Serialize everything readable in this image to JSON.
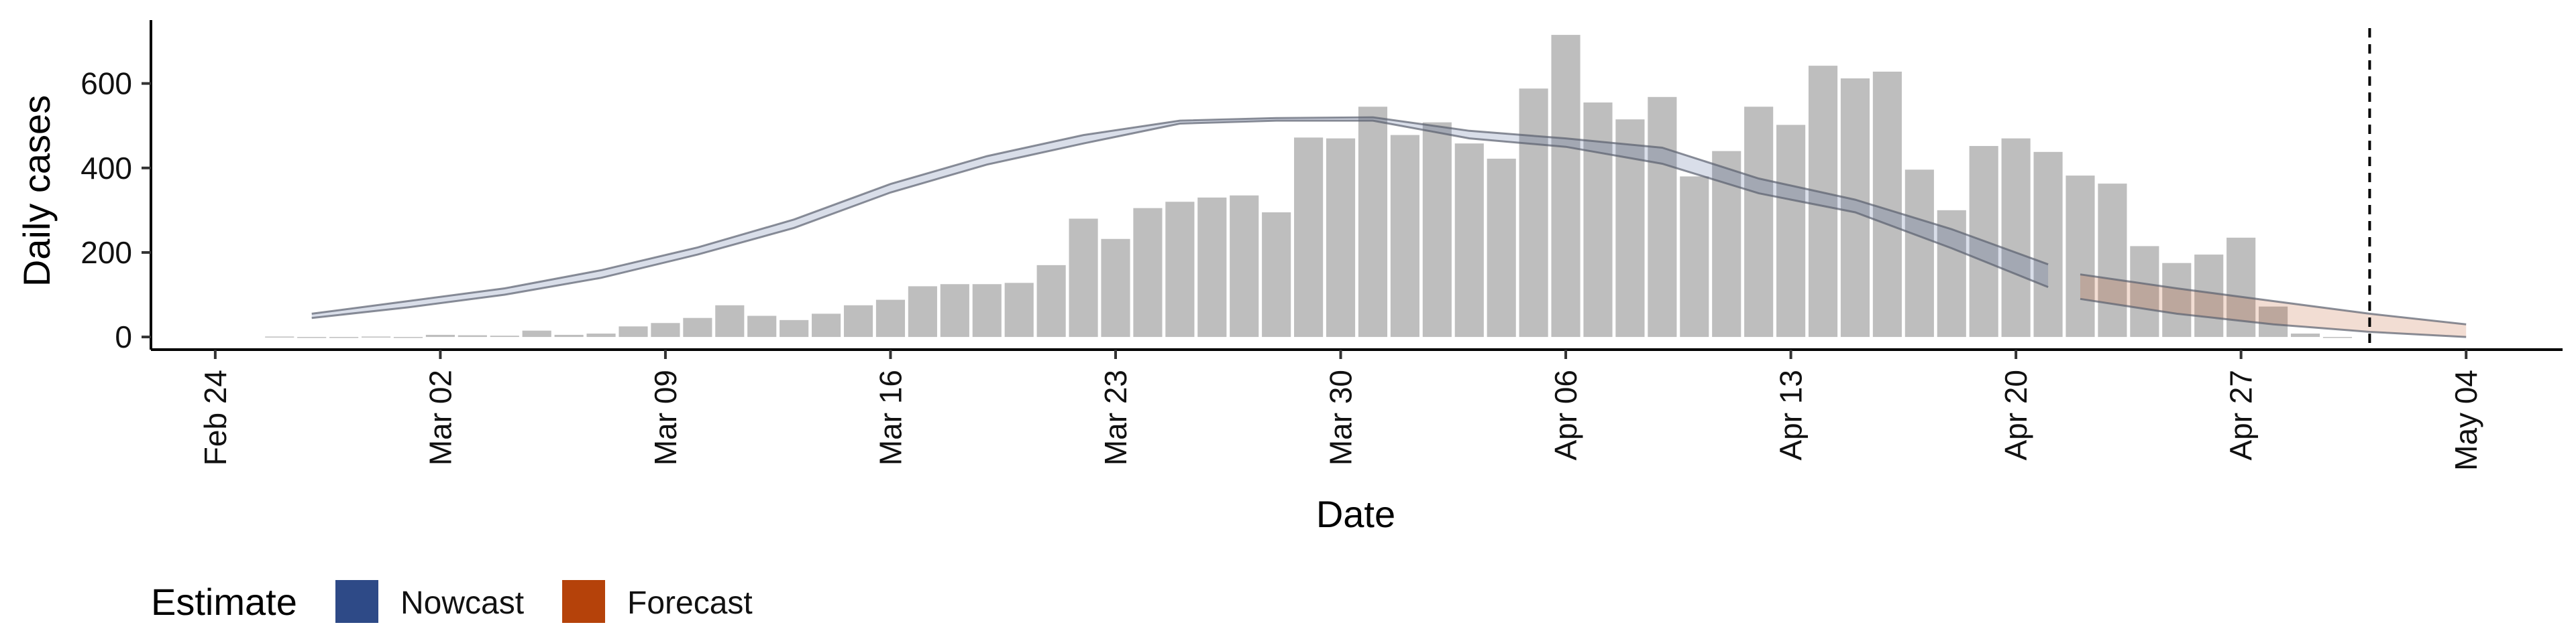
{
  "chart_data": {
    "type": "bar",
    "xlabel": "Date",
    "ylabel": "Daily cases",
    "ylim": [
      -30,
      750
    ],
    "yticks": [
      0,
      200,
      400,
      600
    ],
    "xlim": [
      "2020-02-22",
      "2020-05-07"
    ],
    "xtick_labels": [
      {
        "date": "2020-02-24",
        "label": "Feb 24"
      },
      {
        "date": "2020-03-02",
        "label": "Mar 02"
      },
      {
        "date": "2020-03-09",
        "label": "Mar 09"
      },
      {
        "date": "2020-03-16",
        "label": "Mar 16"
      },
      {
        "date": "2020-03-23",
        "label": "Mar 23"
      },
      {
        "date": "2020-03-30",
        "label": "Mar 30"
      },
      {
        "date": "2020-04-06",
        "label": "Apr 06"
      },
      {
        "date": "2020-04-13",
        "label": "Apr 13"
      },
      {
        "date": "2020-04-20",
        "label": "Apr 20"
      },
      {
        "date": "2020-04-27",
        "label": "Apr 27"
      },
      {
        "date": "2020-05-04",
        "label": "May 04"
      }
    ],
    "reference_line": {
      "date": "2020-05-01",
      "style": "dashed"
    },
    "bars": {
      "color": "#bebebe",
      "dates": [
        "2020-02-26",
        "2020-02-27",
        "2020-02-28",
        "2020-02-29",
        "2020-03-01",
        "2020-03-02",
        "2020-03-03",
        "2020-03-04",
        "2020-03-05",
        "2020-03-06",
        "2020-03-07",
        "2020-03-08",
        "2020-03-09",
        "2020-03-10",
        "2020-03-11",
        "2020-03-12",
        "2020-03-13",
        "2020-03-14",
        "2020-03-15",
        "2020-03-16",
        "2020-03-17",
        "2020-03-18",
        "2020-03-19",
        "2020-03-20",
        "2020-03-21",
        "2020-03-22",
        "2020-03-23",
        "2020-03-24",
        "2020-03-25",
        "2020-03-26",
        "2020-03-27",
        "2020-03-28",
        "2020-03-29",
        "2020-03-30",
        "2020-03-31",
        "2020-04-01",
        "2020-04-02",
        "2020-04-03",
        "2020-04-04",
        "2020-04-05",
        "2020-04-06",
        "2020-04-07",
        "2020-04-08",
        "2020-04-09",
        "2020-04-10",
        "2020-04-11",
        "2020-04-12",
        "2020-04-13",
        "2020-04-14",
        "2020-04-15",
        "2020-04-16",
        "2020-04-17",
        "2020-04-18",
        "2020-04-19",
        "2020-04-20",
        "2020-04-21",
        "2020-04-22",
        "2020-04-23",
        "2020-04-24",
        "2020-04-25",
        "2020-04-26",
        "2020-04-27",
        "2020-04-28",
        "2020-04-29",
        "2020-04-30"
      ],
      "values": [
        1,
        0,
        0,
        1,
        0,
        5,
        4,
        3,
        15,
        5,
        8,
        25,
        33,
        45,
        75,
        50,
        40,
        55,
        75,
        88,
        120,
        125,
        125,
        128,
        170,
        280,
        232,
        305,
        320,
        330,
        335,
        295,
        472,
        470,
        545,
        478,
        508,
        458,
        422,
        588,
        715,
        555,
        515,
        568,
        380,
        440,
        545,
        502,
        642,
        612,
        628,
        396,
        300,
        452,
        470,
        438,
        382,
        363,
        215,
        175,
        195,
        235,
        72,
        8,
        0
      ]
    },
    "estimate_bands": [
      {
        "type": "area",
        "name": "Nowcast",
        "color": "#2e4a87",
        "dates": [
          "2020-02-27",
          "2020-03-01",
          "2020-03-04",
          "2020-03-07",
          "2020-03-10",
          "2020-03-13",
          "2020-03-16",
          "2020-03-19",
          "2020-03-22",
          "2020-03-25",
          "2020-03-28",
          "2020-03-31",
          "2020-04-03",
          "2020-04-06",
          "2020-04-09",
          "2020-04-12",
          "2020-04-15",
          "2020-04-18",
          "2020-04-21"
        ],
        "lower": [
          45,
          70,
          100,
          140,
          195,
          258,
          342,
          408,
          458,
          505,
          512,
          512,
          470,
          450,
          410,
          340,
          295,
          210,
          118
        ],
        "upper": [
          55,
          85,
          115,
          158,
          212,
          278,
          362,
          428,
          478,
          512,
          518,
          520,
          488,
          470,
          448,
          375,
          325,
          255,
          172
        ]
      },
      {
        "type": "area",
        "name": "Forecast",
        "color": "#b5420a",
        "dates": [
          "2020-04-22",
          "2020-04-25",
          "2020-04-28",
          "2020-05-01",
          "2020-05-04"
        ],
        "lower": [
          90,
          55,
          30,
          12,
          0
        ],
        "upper": [
          148,
          115,
          85,
          55,
          30
        ]
      }
    ],
    "legend": {
      "title": "Estimate",
      "placement": "bottom-left",
      "items": [
        {
          "label": "Nowcast",
          "color": "#2e4a87"
        },
        {
          "label": "Forecast",
          "color": "#b5420a"
        }
      ]
    }
  }
}
